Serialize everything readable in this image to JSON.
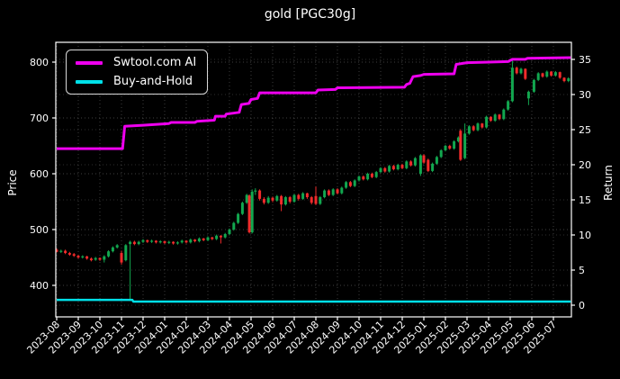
{
  "title": "gold [PGC30g]",
  "colors": {
    "background": "#000000",
    "text": "#ffffff",
    "grid": "#9a9a9a",
    "spine": "#ffffff",
    "ai_line": "#ee00ee",
    "hold_line": "#00e0e8",
    "candle_up": "#12a74f",
    "candle_down": "#f22b2b"
  },
  "legend": {
    "entries": [
      {
        "label": "Swtool.com AI",
        "color": "#ee00ee"
      },
      {
        "label": "Buy-and-Hold",
        "color": "#00e0e8"
      }
    ]
  },
  "chart_data": {
    "type": "candlestick+line",
    "title": "gold [PGC30g]",
    "grid": {
      "style": "dotted",
      "on": true
    },
    "legend_position": "upper-left",
    "x_unit": "months since 2023-08 (fractional)",
    "x_tick_labels": [
      "2023-08",
      "2023-09",
      "2023-10",
      "2023-11",
      "2023-12",
      "2024-01",
      "2024-02",
      "2024-03",
      "2024-04",
      "2024-05",
      "2024-06",
      "2024-07",
      "2024-08",
      "2024-09",
      "2024-10",
      "2024-11",
      "2024-12",
      "2025-01",
      "2025-02",
      "2025-03",
      "2025-04",
      "2025-05",
      "2025-06",
      "2025-07"
    ],
    "left_axis": {
      "label": "Price",
      "ticks": [
        400,
        500,
        600,
        700,
        800
      ],
      "range_approx": [
        343,
        835
      ]
    },
    "right_axis": {
      "label": "Return",
      "ticks": [
        0,
        5,
        10,
        15,
        20,
        25,
        30,
        35
      ],
      "range_approx": [
        -1.7,
        37.3
      ]
    },
    "series": [
      {
        "name": "Swtool.com AI",
        "style": "step-line",
        "color": "#ee00ee",
        "width": 3,
        "value_axis": "price-equivalent (right-axis return rises from ~22 to ~35.2)",
        "points": [
          [
            0,
            645
          ],
          [
            3.05,
            645
          ],
          [
            3.15,
            685
          ],
          [
            4.0,
            687
          ],
          [
            5.2,
            690
          ],
          [
            5.3,
            692
          ],
          [
            6.4,
            692
          ],
          [
            6.5,
            694
          ],
          [
            7.3,
            696
          ],
          [
            7.35,
            703
          ],
          [
            7.8,
            703
          ],
          [
            7.85,
            707
          ],
          [
            8.45,
            710
          ],
          [
            8.55,
            724
          ],
          [
            8.9,
            726
          ],
          [
            9.0,
            733
          ],
          [
            9.3,
            735
          ],
          [
            9.4,
            745
          ],
          [
            12.0,
            745
          ],
          [
            12.1,
            750
          ],
          [
            12.9,
            751
          ],
          [
            13.0,
            754
          ],
          [
            16.1,
            755
          ],
          [
            16.2,
            760
          ],
          [
            16.35,
            762
          ],
          [
            16.5,
            774
          ],
          [
            16.85,
            776
          ],
          [
            17.0,
            778
          ],
          [
            18.4,
            779
          ],
          [
            18.5,
            796
          ],
          [
            19.0,
            799
          ],
          [
            20.0,
            800
          ],
          [
            20.9,
            801
          ],
          [
            21.0,
            803
          ],
          [
            21.1,
            805
          ],
          [
            21.7,
            805
          ],
          [
            21.8,
            807
          ],
          [
            23.8,
            808
          ]
        ]
      },
      {
        "name": "Buy-and-Hold",
        "style": "line",
        "color": "#00e0e8",
        "width": 2.5,
        "value_axis": "price-equivalent (right-axis return ~0.5, flat)",
        "points": [
          [
            0,
            374
          ],
          [
            3.5,
            374
          ],
          [
            3.55,
            371
          ],
          [
            23.8,
            371
          ]
        ]
      }
    ],
    "candles": {
      "up_color": "#12a74f",
      "down_color": "#f22b2b",
      "format": [
        "x_month",
        "open",
        "high",
        "low",
        "close"
      ],
      "ohlc": [
        [
          0.0,
          464,
          466,
          459,
          460
        ],
        [
          0.2,
          460,
          464,
          458,
          462
        ],
        [
          0.4,
          462,
          464,
          456,
          458
        ],
        [
          0.6,
          458,
          460,
          453,
          455
        ],
        [
          0.8,
          456,
          458,
          451,
          453
        ],
        [
          1.0,
          453,
          455,
          448,
          450
        ],
        [
          1.2,
          450,
          454,
          448,
          452
        ],
        [
          1.4,
          452,
          453,
          446,
          448
        ],
        [
          1.6,
          448,
          450,
          443,
          445
        ],
        [
          1.8,
          446,
          451,
          444,
          449
        ],
        [
          2.0,
          449,
          450,
          444,
          446
        ],
        [
          2.2,
          446,
          454,
          441,
          452
        ],
        [
          2.4,
          452,
          463,
          450,
          461
        ],
        [
          2.6,
          461,
          470,
          459,
          468
        ],
        [
          2.8,
          468,
          474,
          466,
          472
        ],
        [
          3.0,
          458,
          462,
          437,
          441
        ],
        [
          3.2,
          445,
          474,
          443,
          472
        ],
        [
          3.4,
          474,
          480,
          372,
          478
        ],
        [
          3.6,
          478,
          480,
          472,
          474
        ],
        [
          3.8,
          474,
          480,
          472,
          478
        ],
        [
          4.0,
          478,
          483,
          476,
          481
        ],
        [
          4.2,
          481,
          482,
          476,
          478
        ],
        [
          4.4,
          478,
          482,
          476,
          480
        ],
        [
          4.6,
          480,
          481,
          475,
          477
        ],
        [
          4.8,
          477,
          481,
          475,
          479
        ],
        [
          5.0,
          479,
          480,
          474,
          476
        ],
        [
          5.2,
          476,
          480,
          474,
          478
        ],
        [
          5.4,
          478,
          479,
          473,
          475
        ],
        [
          5.6,
          475,
          479,
          473,
          477
        ],
        [
          5.8,
          477,
          482,
          475,
          480
        ],
        [
          6.0,
          480,
          481,
          475,
          477
        ],
        [
          6.2,
          477,
          484,
          475,
          482
        ],
        [
          6.4,
          482,
          483,
          477,
          479
        ],
        [
          6.6,
          479,
          486,
          477,
          484
        ],
        [
          6.8,
          484,
          485,
          479,
          481
        ],
        [
          7.0,
          481,
          488,
          479,
          486
        ],
        [
          7.2,
          486,
          487,
          481,
          483
        ],
        [
          7.4,
          483,
          491,
          481,
          489
        ],
        [
          7.6,
          489,
          490,
          475,
          486
        ],
        [
          7.8,
          486,
          494,
          484,
          492
        ],
        [
          8.0,
          492,
          502,
          490,
          500
        ],
        [
          8.2,
          500,
          514,
          498,
          512
        ],
        [
          8.4,
          512,
          530,
          510,
          528
        ],
        [
          8.6,
          528,
          550,
          526,
          548
        ],
        [
          8.8,
          548,
          564,
          546,
          562
        ],
        [
          8.92,
          561,
          563,
          493,
          495
        ],
        [
          9.05,
          495,
          572,
          493,
          568
        ],
        [
          9.2,
          568,
          574,
          562,
          570
        ],
        [
          9.4,
          570,
          572,
          552,
          555
        ],
        [
          9.6,
          555,
          558,
          545,
          548
        ],
        [
          9.8,
          548,
          560,
          546,
          557
        ],
        [
          10.0,
          557,
          559,
          549,
          552
        ],
        [
          10.2,
          552,
          562,
          550,
          560
        ],
        [
          10.4,
          560,
          562,
          533,
          545
        ],
        [
          10.6,
          545,
          560,
          543,
          558
        ],
        [
          10.8,
          558,
          560,
          547,
          550
        ],
        [
          11.0,
          550,
          564,
          548,
          562
        ],
        [
          11.2,
          562,
          564,
          552,
          555
        ],
        [
          11.4,
          555,
          567,
          553,
          565
        ],
        [
          11.6,
          565,
          566,
          555,
          558
        ],
        [
          11.8,
          558,
          560,
          545,
          548
        ],
        [
          12.0,
          560,
          577,
          544,
          546
        ],
        [
          12.2,
          546,
          560,
          544,
          558
        ],
        [
          12.4,
          558,
          572,
          556,
          570
        ],
        [
          12.6,
          570,
          572,
          560,
          562
        ],
        [
          12.8,
          562,
          574,
          560,
          572
        ],
        [
          13.0,
          572,
          574,
          563,
          565
        ],
        [
          13.2,
          565,
          577,
          563,
          575
        ],
        [
          13.4,
          575,
          587,
          573,
          585
        ],
        [
          13.6,
          585,
          587,
          576,
          578
        ],
        [
          13.8,
          578,
          590,
          576,
          588
        ],
        [
          14.0,
          588,
          597,
          586,
          595
        ],
        [
          14.2,
          595,
          597,
          588,
          590
        ],
        [
          14.4,
          590,
          602,
          588,
          600
        ],
        [
          14.6,
          600,
          602,
          592,
          594
        ],
        [
          14.8,
          594,
          605,
          592,
          603
        ],
        [
          15.0,
          603,
          612,
          601,
          610
        ],
        [
          15.2,
          610,
          612,
          602,
          604
        ],
        [
          15.4,
          604,
          616,
          602,
          614
        ],
        [
          15.6,
          614,
          616,
          606,
          608
        ],
        [
          15.8,
          608,
          618,
          606,
          616
        ],
        [
          16.0,
          616,
          618,
          608,
          610
        ],
        [
          16.2,
          610,
          624,
          608,
          622
        ],
        [
          16.4,
          622,
          624,
          613,
          615
        ],
        [
          16.6,
          615,
          630,
          613,
          628
        ],
        [
          16.85,
          600,
          635,
          596,
          633
        ],
        [
          17.0,
          633,
          635,
          618,
          620
        ],
        [
          17.2,
          625,
          627,
          603,
          605
        ],
        [
          17.4,
          605,
          620,
          603,
          618
        ],
        [
          17.6,
          618,
          632,
          616,
          630
        ],
        [
          17.8,
          630,
          644,
          628,
          642
        ],
        [
          18.0,
          642,
          652,
          640,
          650
        ],
        [
          18.2,
          650,
          652,
          643,
          645
        ],
        [
          18.4,
          645,
          660,
          643,
          658
        ],
        [
          18.6,
          658,
          667,
          656,
          665
        ],
        [
          18.7,
          677,
          680,
          623,
          625
        ],
        [
          18.9,
          628,
          690,
          626,
          672
        ],
        [
          19.1,
          672,
          687,
          670,
          685
        ],
        [
          19.3,
          685,
          687,
          676,
          678
        ],
        [
          19.5,
          678,
          692,
          676,
          690
        ],
        [
          19.7,
          690,
          691,
          681,
          683
        ],
        [
          19.9,
          683,
          704,
          681,
          702
        ],
        [
          20.1,
          702,
          703,
          693,
          695
        ],
        [
          20.3,
          695,
          708,
          693,
          706
        ],
        [
          20.5,
          706,
          707,
          696,
          698
        ],
        [
          20.7,
          698,
          717,
          696,
          715
        ],
        [
          20.9,
          715,
          732,
          713,
          730
        ],
        [
          21.1,
          730,
          806,
          728,
          790
        ],
        [
          21.3,
          790,
          792,
          778,
          780
        ],
        [
          21.5,
          780,
          790,
          778,
          788
        ],
        [
          21.7,
          788,
          789,
          768,
          770
        ],
        [
          21.85,
          735,
          749,
          723,
          747
        ],
        [
          22.1,
          747,
          770,
          745,
          768
        ],
        [
          22.3,
          768,
          782,
          766,
          780
        ],
        [
          22.5,
          780,
          781,
          772,
          774
        ],
        [
          22.7,
          774,
          785,
          772,
          783
        ],
        [
          22.9,
          783,
          784,
          774,
          776
        ],
        [
          23.1,
          776,
          784,
          774,
          782
        ],
        [
          23.3,
          782,
          783,
          770,
          772
        ],
        [
          23.5,
          772,
          773,
          764,
          766
        ],
        [
          23.7,
          766,
          773,
          764,
          771
        ]
      ]
    }
  }
}
